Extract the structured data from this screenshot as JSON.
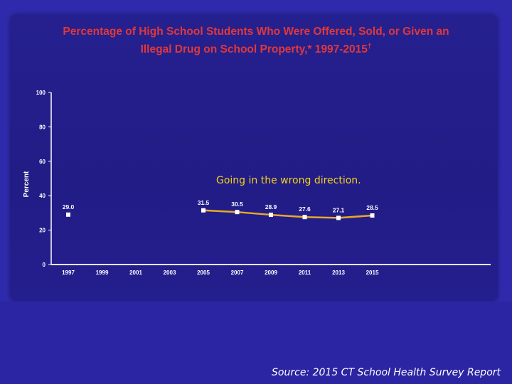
{
  "title_line1": "Percentage of High School Students Who Were Offered, Sold, or Given an",
  "title_line2": "Illegal Drug on School Property,* 1997-2015",
  "title_sup": "†",
  "annotation": "Going in the wrong direction.",
  "source": "Source: 2015 CT School Health Survey Report",
  "colors": {
    "title": "#e0383b",
    "annotation": "#f2d21a",
    "line": "#e8a82a",
    "marker": "#ffffff",
    "text": "#ffffff"
  },
  "chart_data": {
    "type": "line",
    "ylabel": "Percent",
    "ylim": [
      0,
      100
    ],
    "yticks": [
      "0",
      "20",
      "40",
      "60",
      "80",
      "100"
    ],
    "categories": [
      "1997",
      "1999",
      "2001",
      "2003",
      "2005",
      "2007",
      "2009",
      "2011",
      "2013",
      "2015"
    ],
    "series": [
      {
        "values": [
          29.0,
          null,
          null,
          null,
          31.5,
          30.5,
          28.9,
          27.6,
          27.1,
          28.5
        ],
        "labels": [
          "29.0",
          "",
          "",
          "",
          "31.5",
          "30.5",
          "28.9",
          "27.6",
          "27.1",
          "28.5"
        ]
      }
    ],
    "grid": false
  }
}
